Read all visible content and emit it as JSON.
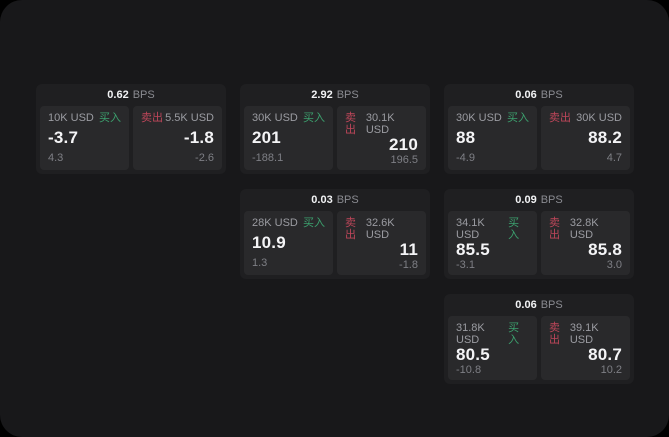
{
  "labels": {
    "bps": "BPS",
    "buy": "买入",
    "sell": "卖出"
  },
  "colors": {
    "buy_green": "#3ca06e",
    "sell_red": "#be465a",
    "screen_bg": "#18181a",
    "card_bg": "#1f1f21",
    "panel_bg": "#29292b",
    "value_text": "#f4f4f6",
    "muted_text": "#9b9ca2",
    "sub_text": "#7e7f85"
  },
  "cards": [
    {
      "bps": "0.62",
      "buy": {
        "amount": "10K USD",
        "value": "-3.7",
        "sub": "4.3"
      },
      "sell": {
        "amount": "5.5K USD",
        "value": "-1.8",
        "sub": "-2.6"
      }
    },
    {
      "bps": "2.92",
      "buy": {
        "amount": "30K USD",
        "value": "201",
        "sub": "-188.1"
      },
      "sell": {
        "amount": "30.1K USD",
        "value": "210",
        "sub": "196.5"
      }
    },
    {
      "bps": "0.06",
      "buy": {
        "amount": "30K USD",
        "value": "88",
        "sub": "-4.9"
      },
      "sell": {
        "amount": "30K USD",
        "value": "88.2",
        "sub": "4.7"
      }
    },
    {
      "bps": "0.03",
      "buy": {
        "amount": "28K USD",
        "value": "10.9",
        "sub": "1.3"
      },
      "sell": {
        "amount": "32.6K USD",
        "value": "11",
        "sub": "-1.8"
      }
    },
    {
      "bps": "0.09",
      "buy": {
        "amount": "34.1K USD",
        "value": "85.5",
        "sub": "-3.1"
      },
      "sell": {
        "amount": "32.8K USD",
        "value": "85.8",
        "sub": "3.0"
      }
    },
    {
      "bps": "0.06",
      "buy": {
        "amount": "31.8K USD",
        "value": "80.5",
        "sub": "-10.8"
      },
      "sell": {
        "amount": "39.1K USD",
        "value": "80.7",
        "sub": "10.2"
      }
    }
  ]
}
